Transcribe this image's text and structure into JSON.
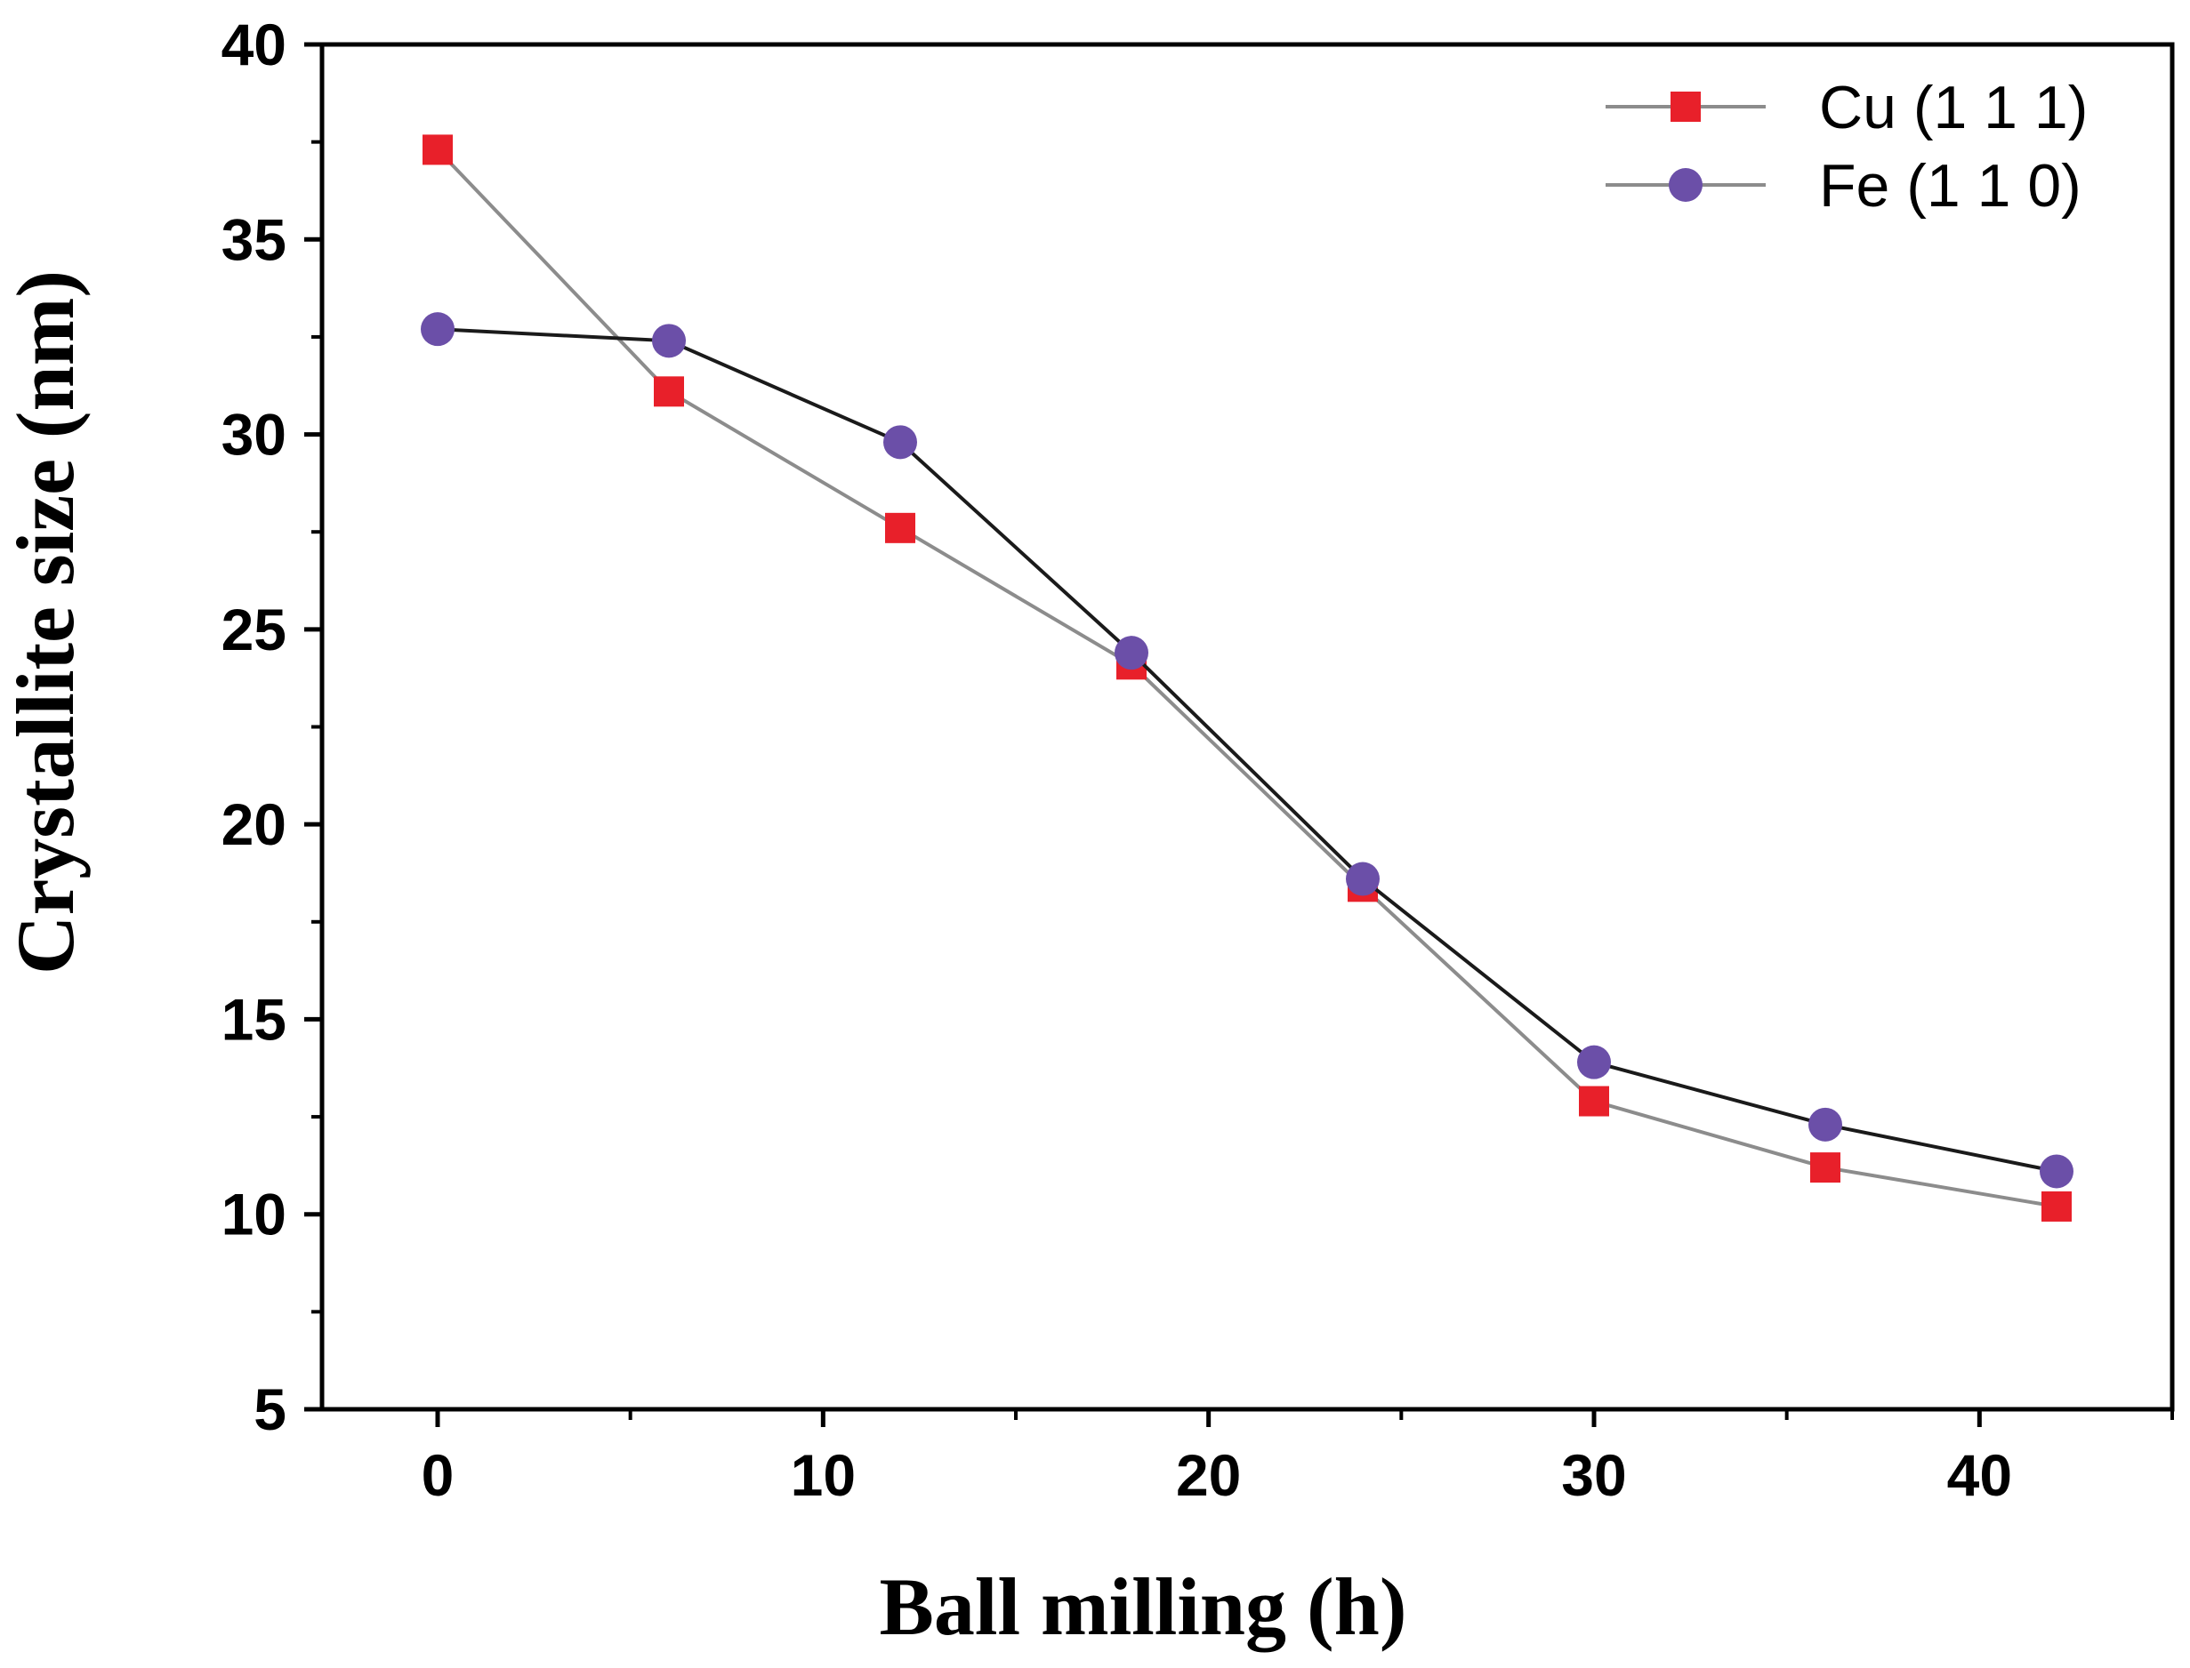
{
  "chart_data": {
    "type": "line",
    "title": "",
    "xlabel": "Ball milling (h)",
    "ylabel": "Crystallite size (nm)",
    "xlim": [
      -3,
      45
    ],
    "ylim": [
      5,
      40
    ],
    "x_ticks": [
      0,
      10,
      20,
      30,
      40
    ],
    "x_tick_labels": [
      "0",
      "10",
      "20",
      "30",
      "40"
    ],
    "x_minor_ticks": [
      5,
      15,
      25,
      35,
      45
    ],
    "y_ticks": [
      5,
      10,
      15,
      20,
      25,
      30,
      35,
      40
    ],
    "y_tick_labels": [
      "5",
      "10",
      "15",
      "20",
      "25",
      "30",
      "35",
      "40"
    ],
    "y_minor_ticks": [
      7.5,
      12.5,
      17.5,
      22.5,
      27.5,
      32.5,
      37.5
    ],
    "grid": false,
    "legend_position": "top-right",
    "series": [
      {
        "name": "Cu (1 1 1)",
        "marker": "square",
        "marker_color": "#e8202a",
        "line_color": "#8c8c8c",
        "x": [
          0,
          6,
          12,
          18,
          24,
          30,
          36,
          42
        ],
        "y": [
          37.3,
          31.1,
          27.6,
          24.1,
          18.4,
          12.9,
          11.2,
          10.2
        ]
      },
      {
        "name": "Fe (1 1 0)",
        "marker": "circle",
        "marker_color": "#6b4fa8",
        "line_color": "#1a1a1a",
        "x": [
          0,
          6,
          12,
          18,
          24,
          30,
          36,
          42
        ],
        "y": [
          32.7,
          32.4,
          29.8,
          24.4,
          18.6,
          13.9,
          12.3,
          11.1
        ]
      }
    ]
  }
}
